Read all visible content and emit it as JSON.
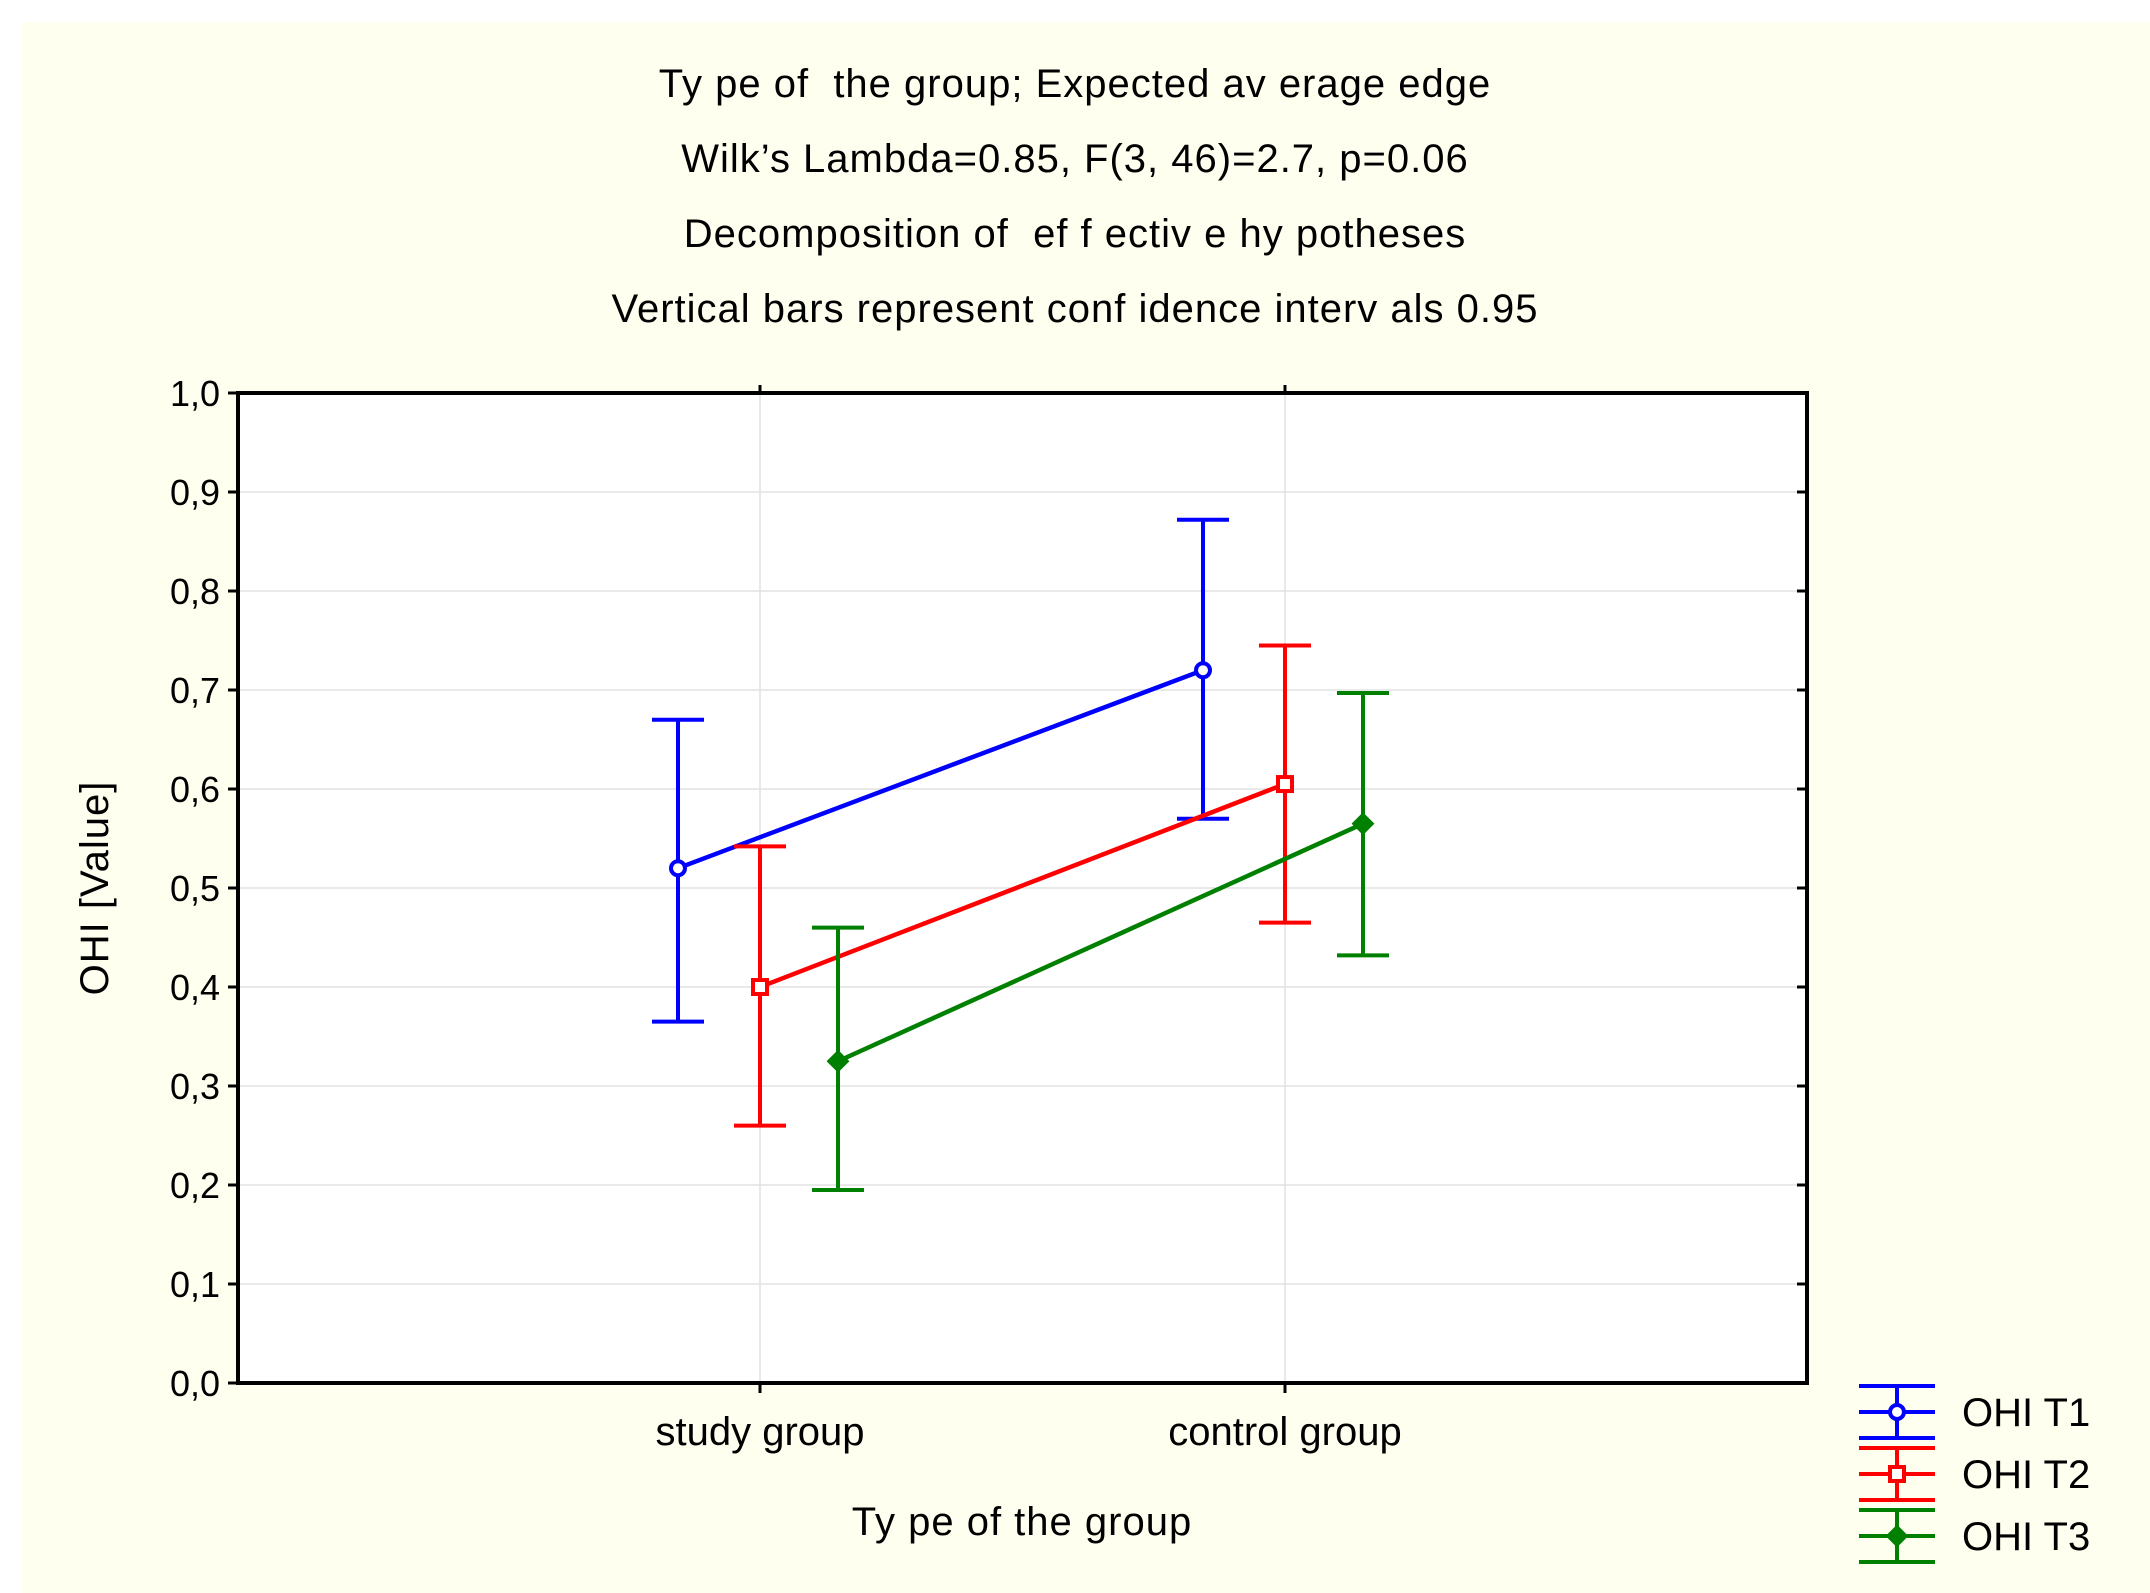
{
  "chart_data": {
    "type": "line",
    "title_lines": [
      "Ty pe of  the group; Expected av erage edge",
      "Wilk’s Lambda=0.85, F(3, 46)=2.7, p=0.06",
      "Decomposition of  ef f ectiv e hy potheses",
      "Vertical bars represent conf idence interv als 0.95"
    ],
    "xlabel": "Ty pe of  the group",
    "ylabel": "OHI [Value]",
    "categories": [
      "study  group",
      "control group"
    ],
    "ylim": [
      0,
      1
    ],
    "yticks": [
      "0,0",
      "0,1",
      "0,2",
      "0,3",
      "0,4",
      "0,5",
      "0,6",
      "0,7",
      "0,8",
      "0,9",
      "1,0"
    ],
    "grid": true,
    "legend_position": "bottom-right",
    "series": [
      {
        "name": "OHI T1",
        "color": "#0000ff",
        "marker": "circle",
        "values": [
          0.52,
          0.72
        ],
        "ci_low": [
          0.365,
          0.57
        ],
        "ci_high": [
          0.67,
          0.872
        ]
      },
      {
        "name": "OHI T2",
        "color": "#ff0000",
        "marker": "square",
        "values": [
          0.4,
          0.605
        ],
        "ci_low": [
          0.26,
          0.465
        ],
        "ci_high": [
          0.542,
          0.745
        ]
      },
      {
        "name": "OHI T3",
        "color": "#008000",
        "marker": "diamond",
        "values": [
          0.325,
          0.565
        ],
        "ci_low": [
          0.195,
          0.432
        ],
        "ci_high": [
          0.46,
          0.697
        ]
      }
    ]
  }
}
